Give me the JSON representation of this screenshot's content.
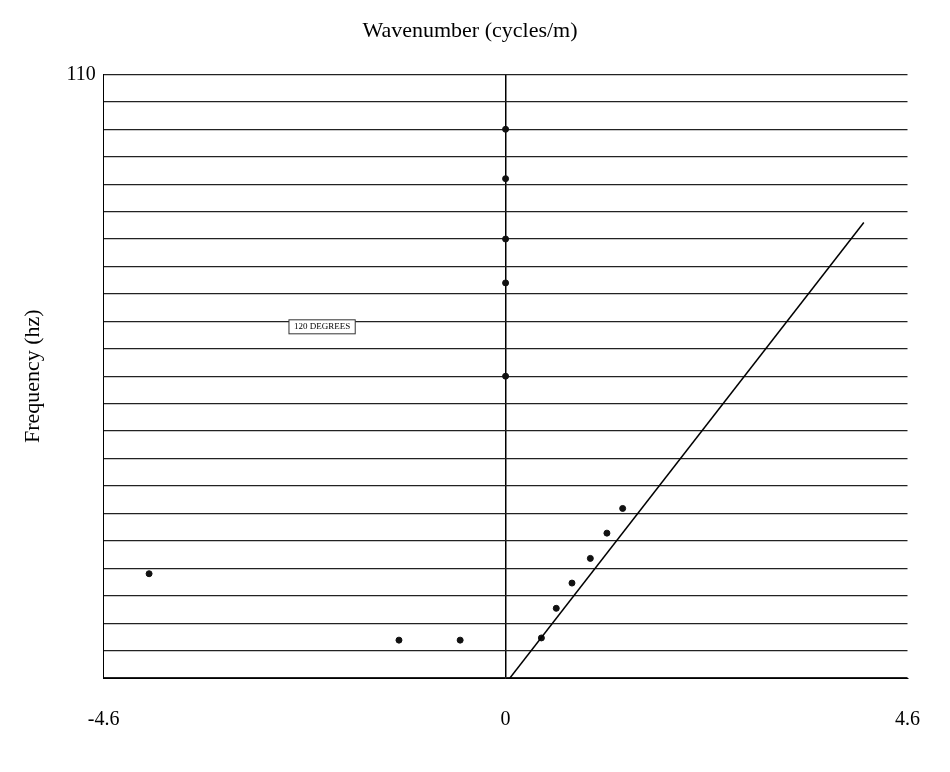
{
  "chart_data": {
    "type": "scatter",
    "title": "Wavenumber (cycles/m)",
    "x_label": "Wavenumber (cycles/m)",
    "y_label": "Frequency (hz)",
    "xlim": [
      -4.6,
      4.6
    ],
    "xticks": [
      -4.6,
      0,
      4.6
    ],
    "ylim": [
      0,
      110
    ],
    "yticks": [
      {
        "value": 0,
        "label": null
      },
      {
        "value": 5,
        "label": null
      },
      {
        "value": 10,
        "label": null
      },
      {
        "value": 15,
        "label": null
      },
      {
        "value": 20,
        "label": null
      },
      {
        "value": 25,
        "label": null
      },
      {
        "value": 30,
        "label": null
      },
      {
        "value": 35,
        "label": null
      },
      {
        "value": 40,
        "label": null
      },
      {
        "value": 45,
        "label": null
      },
      {
        "value": 50,
        "label": null
      },
      {
        "value": 55,
        "label": null
      },
      {
        "value": 60,
        "label": null
      },
      {
        "value": 65,
        "label": null
      },
      {
        "value": 70,
        "label": null
      },
      {
        "value": 75,
        "label": null
      },
      {
        "value": 80,
        "label": null
      },
      {
        "value": 85,
        "label": null
      },
      {
        "value": 90,
        "label": null
      },
      {
        "value": 95,
        "label": null
      },
      {
        "value": 100,
        "label": null
      },
      {
        "value": 105,
        "label": null
      },
      110
    ],
    "grid": true,
    "series": [
      {
        "type": "line",
        "color": "#000000",
        "line_style": "solid",
        "x": [
          0.05,
          4.1
        ],
        "values": [
          0,
          83
        ]
      },
      {
        "type": "scatter",
        "color": "#111111",
        "marker": "circle",
        "x": [
          0.41,
          0.58,
          0.76,
          0.97,
          1.16,
          1.34,
          -1.22,
          -0.52,
          -4.08,
          0,
          0,
          0,
          0,
          0
        ],
        "values": [
          7.3,
          12.7,
          17.3,
          21.8,
          26.4,
          30.9,
          6.9,
          6.9,
          19,
          55,
          72,
          80,
          91,
          100
        ]
      }
    ],
    "annotations": [
      {
        "text": "120 DEGREES",
        "x": -2.1,
        "y": 64
      }
    ]
  }
}
